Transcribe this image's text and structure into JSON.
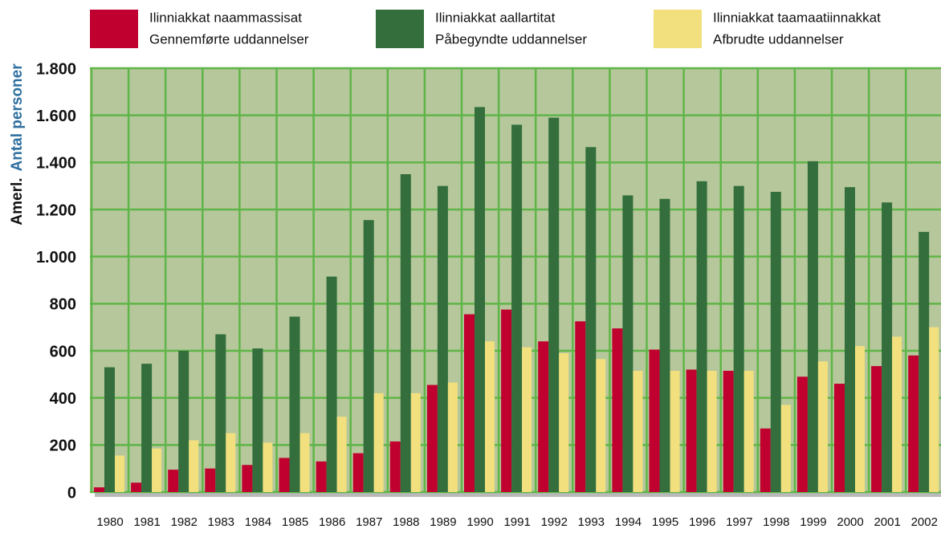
{
  "chart_data": {
    "type": "bar",
    "y_axis_label": [
      "Amerl.",
      "Antal personer"
    ],
    "categories": [
      "1980",
      "1981",
      "1982",
      "1983",
      "1984",
      "1985",
      "1986",
      "1987",
      "1988",
      "1989",
      "1990",
      "1991",
      "1992",
      "1993",
      "1994",
      "1995",
      "1996",
      "1997",
      "1998",
      "1999",
      "2000",
      "2001",
      "2002"
    ],
    "series": [
      {
        "name": "Ilinniakkat naammassisat",
        "name_danish": "Gennemførte uddannelser",
        "color": "#c0002e",
        "values": [
          20,
          40,
          95,
          100,
          115,
          145,
          130,
          165,
          215,
          455,
          755,
          775,
          640,
          725,
          695,
          605,
          520,
          515,
          270,
          490,
          460,
          535,
          580
        ]
      },
      {
        "name": "Ilinniakkat aallartitat",
        "name_danish": "Påbegyndte uddannelser",
        "color": "#336e3c",
        "values": [
          530,
          545,
          600,
          670,
          610,
          745,
          915,
          1155,
          1350,
          1300,
          1635,
          1560,
          1590,
          1465,
          1260,
          1245,
          1320,
          1300,
          1275,
          1405,
          1295,
          1230,
          1105
        ]
      },
      {
        "name": "Ilinniakkat taamaatiinnakkat",
        "name_danish": "Afbrudte uddannelser",
        "color": "#f2e07e",
        "values": [
          155,
          185,
          220,
          250,
          210,
          250,
          320,
          420,
          420,
          465,
          640,
          615,
          590,
          565,
          515,
          515,
          515,
          515,
          370,
          555,
          620,
          660,
          700
        ]
      }
    ],
    "ylim": [
      0,
      1800
    ],
    "yticks": [
      0,
      200,
      400,
      600,
      800,
      {
        "value": 1000,
        "label": "1.000"
      },
      {
        "value": 1200,
        "label": "1.200"
      },
      {
        "value": 1400,
        "label": "1.400"
      },
      {
        "value": 1600,
        "label": "1.600"
      },
      {
        "value": 1800,
        "label": "1.800"
      }
    ],
    "grid": true
  }
}
